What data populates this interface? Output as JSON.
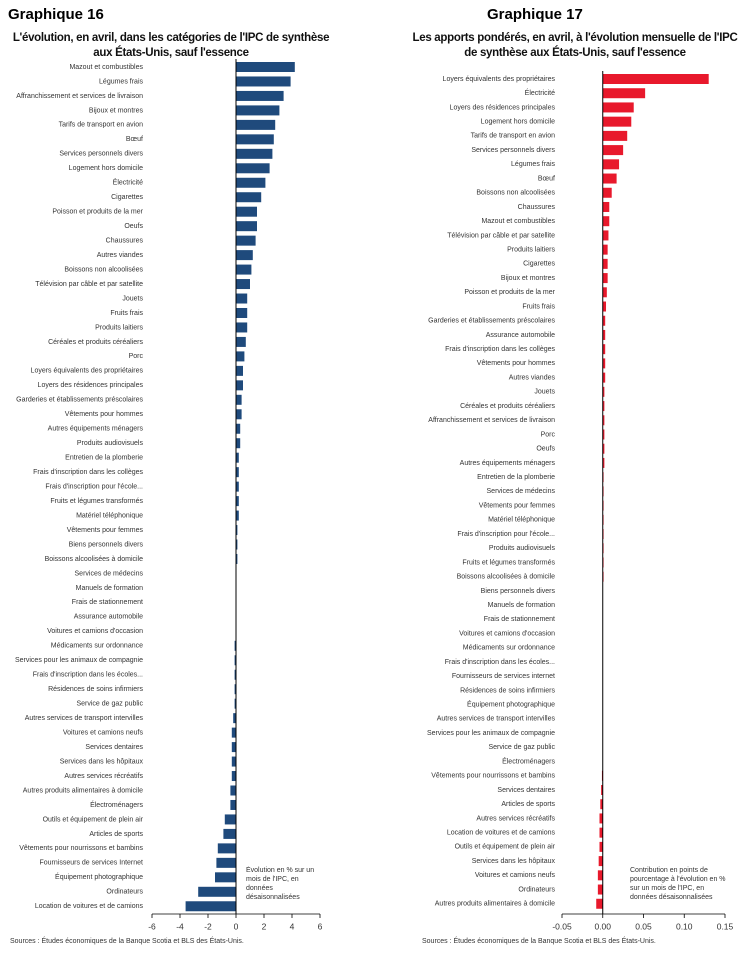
{
  "chart_data": [
    {
      "type": "bar",
      "orientation": "horizontal",
      "title": "Graphique 16",
      "subtitle": "L'évolution, en avril, dans les catégories de l'IPC de synthèse aux États-Unis, sauf l'essence",
      "categories": [
        "Mazout et combustibles",
        "Légumes frais",
        "Affranchissement et services de livraison",
        "Bijoux et montres",
        "Tarifs de transport en avion",
        "Bœuf",
        "Services personnels divers",
        "Logement hors domicile",
        "Électricité",
        "Cigarettes",
        "Poisson et produits de la mer",
        "Oeufs",
        "Chaussures",
        "Autres viandes",
        "Boissons non alcoolisées",
        "Télévision par câble et par satellite",
        "Jouets",
        "Fruits frais",
        "Produits laitiers",
        "Céréales et produits céréaliers",
        "Porc",
        "Loyers équivalents des propriétaires",
        "Loyers des résidences principales",
        "Garderies et établissements préscolaires",
        "Vêtements pour hommes",
        "Autres équipements ménagers",
        "Produits audiovisuels",
        "Entretien de la plomberie",
        "Frais d'inscription dans les collèges",
        "Frais d'inscription pour l'école...",
        "Fruits et légumes transformés",
        "Matériel téléphonique",
        "Vêtements pour femmes",
        "Biens personnels divers",
        "Boissons alcoolisées à domicile",
        "Services de médecins",
        "Manuels de formation",
        "Frais de stationnement",
        "Assurance automobile",
        "Voitures et camions d'occasion",
        "Médicaments sur ordonnance",
        "Services pour les animaux de compagnie",
        "Frais d'inscription dans les écoles...",
        "Résidences de soins infirmiers",
        "Service de gaz public",
        "Autres services de transport intervilles",
        "Voitures et camions neufs",
        "Services dentaires",
        "Services dans les hôpitaux",
        "Autres services récréatifs",
        "Autres produits alimentaires à domicile",
        "Électroménagers",
        "Outils et équipement de plein air",
        "Articles de sports",
        "Vêtements pour nourrissons et bambins",
        "Fournisseurs de services Internet",
        "Équipement photographique",
        "Ordinateurs",
        "Location de voitures et de camions"
      ],
      "values": [
        4.2,
        3.9,
        3.4,
        3.1,
        2.8,
        2.7,
        2.6,
        2.4,
        2.1,
        1.8,
        1.5,
        1.5,
        1.4,
        1.2,
        1.1,
        1.0,
        0.8,
        0.8,
        0.8,
        0.7,
        0.6,
        0.5,
        0.5,
        0.4,
        0.4,
        0.3,
        0.3,
        0.2,
        0.2,
        0.2,
        0.2,
        0.2,
        0.1,
        0.1,
        0.1,
        0.0,
        0.0,
        0.0,
        0.0,
        0.0,
        -0.1,
        -0.1,
        -0.1,
        -0.1,
        -0.1,
        -0.2,
        -0.3,
        -0.3,
        -0.3,
        -0.3,
        -0.4,
        -0.4,
        -0.8,
        -0.9,
        -1.3,
        -1.4,
        -1.5,
        -2.7,
        -3.6
      ],
      "color": "#1f4a7c",
      "xlim": [
        -6,
        6
      ],
      "xticks": [
        -6,
        -4,
        -2,
        0,
        2,
        4,
        6
      ],
      "annotation": "Évolution en % sur un mois de l'IPC, en données désaisonnalisées",
      "source": "Sources : Études économiques de la Banque Scotia et BLS des États-Unis."
    },
    {
      "type": "bar",
      "orientation": "horizontal",
      "title": "Graphique 17",
      "subtitle": "Les apports pondérés, en avril, à l'évolution mensuelle de l'IPC de synthèse aux États-Unis, sauf l'essence",
      "categories": [
        "Loyers équivalents des propriétaires",
        "Électricité",
        "Loyers des résidences principales",
        "Logement hors domicile",
        "Tarifs de transport en avion",
        "Services personnels divers",
        "Légumes frais",
        "Bœuf",
        "Boissons non alcoolisées",
        "Chaussures",
        "Mazout et combustibles",
        "Télévision par câble et par satellite",
        "Produits laitiers",
        "Cigarettes",
        "Bijoux et montres",
        "Poisson et produits de la mer",
        "Fruits frais",
        "Garderies et établissements préscolaires",
        "Assurance automobile",
        "Frais d'inscription dans les collèges",
        "Vêtements pour hommes",
        "Autres viandes",
        "Jouets",
        "Céréales et produits céréaliers",
        "Affranchissement et services de livraison",
        "Porc",
        "Oeufs",
        "Autres équipements ménagers",
        "Entretien de la plomberie",
        "Services de médecins",
        "Vêtements pour femmes",
        "Matériel téléphonique",
        "Frais d'inscription pour l'école...",
        "Produits audiovisuels",
        "Fruits et légumes transformés",
        "Boissons alcoolisées à domicile",
        "Biens personnels divers",
        "Manuels de formation",
        "Frais de stationnement",
        "Voitures et camions d'occasion",
        "Médicaments sur ordonnance",
        "Frais d'inscription dans les écoles...",
        "Fournisseurs de services internet",
        "Résidences de soins infirmiers",
        "Équipement photographique",
        "Autres services de transport intervilles",
        "Services pour les animaux de compagnie",
        "Service de gaz public",
        "Électroménagers",
        "Vêtements pour nourrissons et bambins",
        "Services dentaires",
        "Articles de sports",
        "Autres services récréatifs",
        "Location de voitures et de camions",
        "Outils et équipement de plein air",
        "Services dans les hôpitaux",
        "Voitures et camions neufs",
        "Ordinateurs",
        "Autres produits alimentaires à domicile"
      ],
      "values": [
        0.13,
        0.052,
        0.038,
        0.035,
        0.03,
        0.025,
        0.02,
        0.017,
        0.011,
        0.008,
        0.008,
        0.007,
        0.006,
        0.006,
        0.006,
        0.005,
        0.004,
        0.003,
        0.003,
        0.003,
        0.003,
        0.003,
        0.002,
        0.002,
        0.002,
        0.002,
        0.002,
        0.002,
        0.001,
        0.001,
        0.001,
        0.001,
        0.001,
        0.001,
        0.001,
        0.001,
        0.0,
        0.0,
        0.0,
        0.0,
        0.0,
        0.0,
        0.0,
        0.0,
        0.0,
        0.0,
        0.0,
        0.0,
        0.0,
        -0.001,
        -0.002,
        -0.003,
        -0.004,
        -0.004,
        -0.004,
        -0.005,
        -0.006,
        -0.006,
        -0.008
      ],
      "color": "#e8192c",
      "xlim": [
        -0.05,
        0.15
      ],
      "xticks": [
        -0.05,
        {
          "value": 0,
          "label": "0.00"
        },
        0.05,
        {
          "value": 0.1,
          "label": "0.10"
        },
        0.15
      ],
      "annotation": "Contribution en points de pourcentage à l'évolution en % sur un mois de l'IPC, en données désaisonnalisées",
      "source": "Sources : Études économiques de la Banque Scotia et BLS des États-Unis."
    }
  ]
}
